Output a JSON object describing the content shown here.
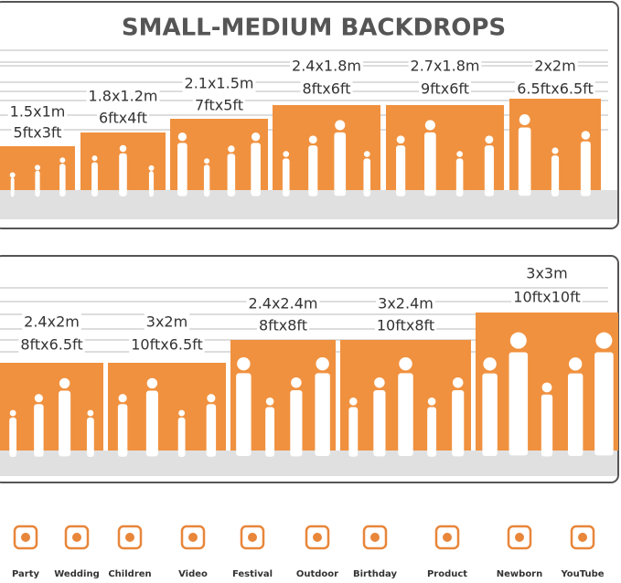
{
  "header": {
    "title": "SMALL-MEDIUM BACKDROPS"
  },
  "panels": [
    {
      "sizes": [
        {
          "metric": "1.5x1m",
          "imperial": "5ftx3ft"
        },
        {
          "metric": "1.8x1.2m",
          "imperial": "6ftx4ft"
        },
        {
          "metric": "2.1x1.5m",
          "imperial": "7ftx5ft"
        },
        {
          "metric": "2.4x1.8m",
          "imperial": "8ftx6ft"
        },
        {
          "metric": "2.7x1.8m",
          "imperial": "9ftx6ft"
        },
        {
          "metric": "2x2m",
          "imperial": "6.5ftx6.5ft"
        }
      ]
    },
    {
      "sizes": [
        {
          "metric": "2.4x2m",
          "imperial": "8ftx6.5ft"
        },
        {
          "metric": "3x2m",
          "imperial": "10ftx6.5ft"
        },
        {
          "metric": "2.4x2.4m",
          "imperial": "8ftx8ft"
        },
        {
          "metric": "3x2.4m",
          "imperial": "10ftx8ft"
        },
        {
          "metric": "3x3m",
          "imperial": "10ftx10ft"
        }
      ]
    }
  ],
  "uses": [
    "Party",
    "Wedding",
    "Children",
    "Video",
    "Festival",
    "Outdoor",
    "Birthday",
    "Product",
    "Newborn",
    "YouTube"
  ]
}
